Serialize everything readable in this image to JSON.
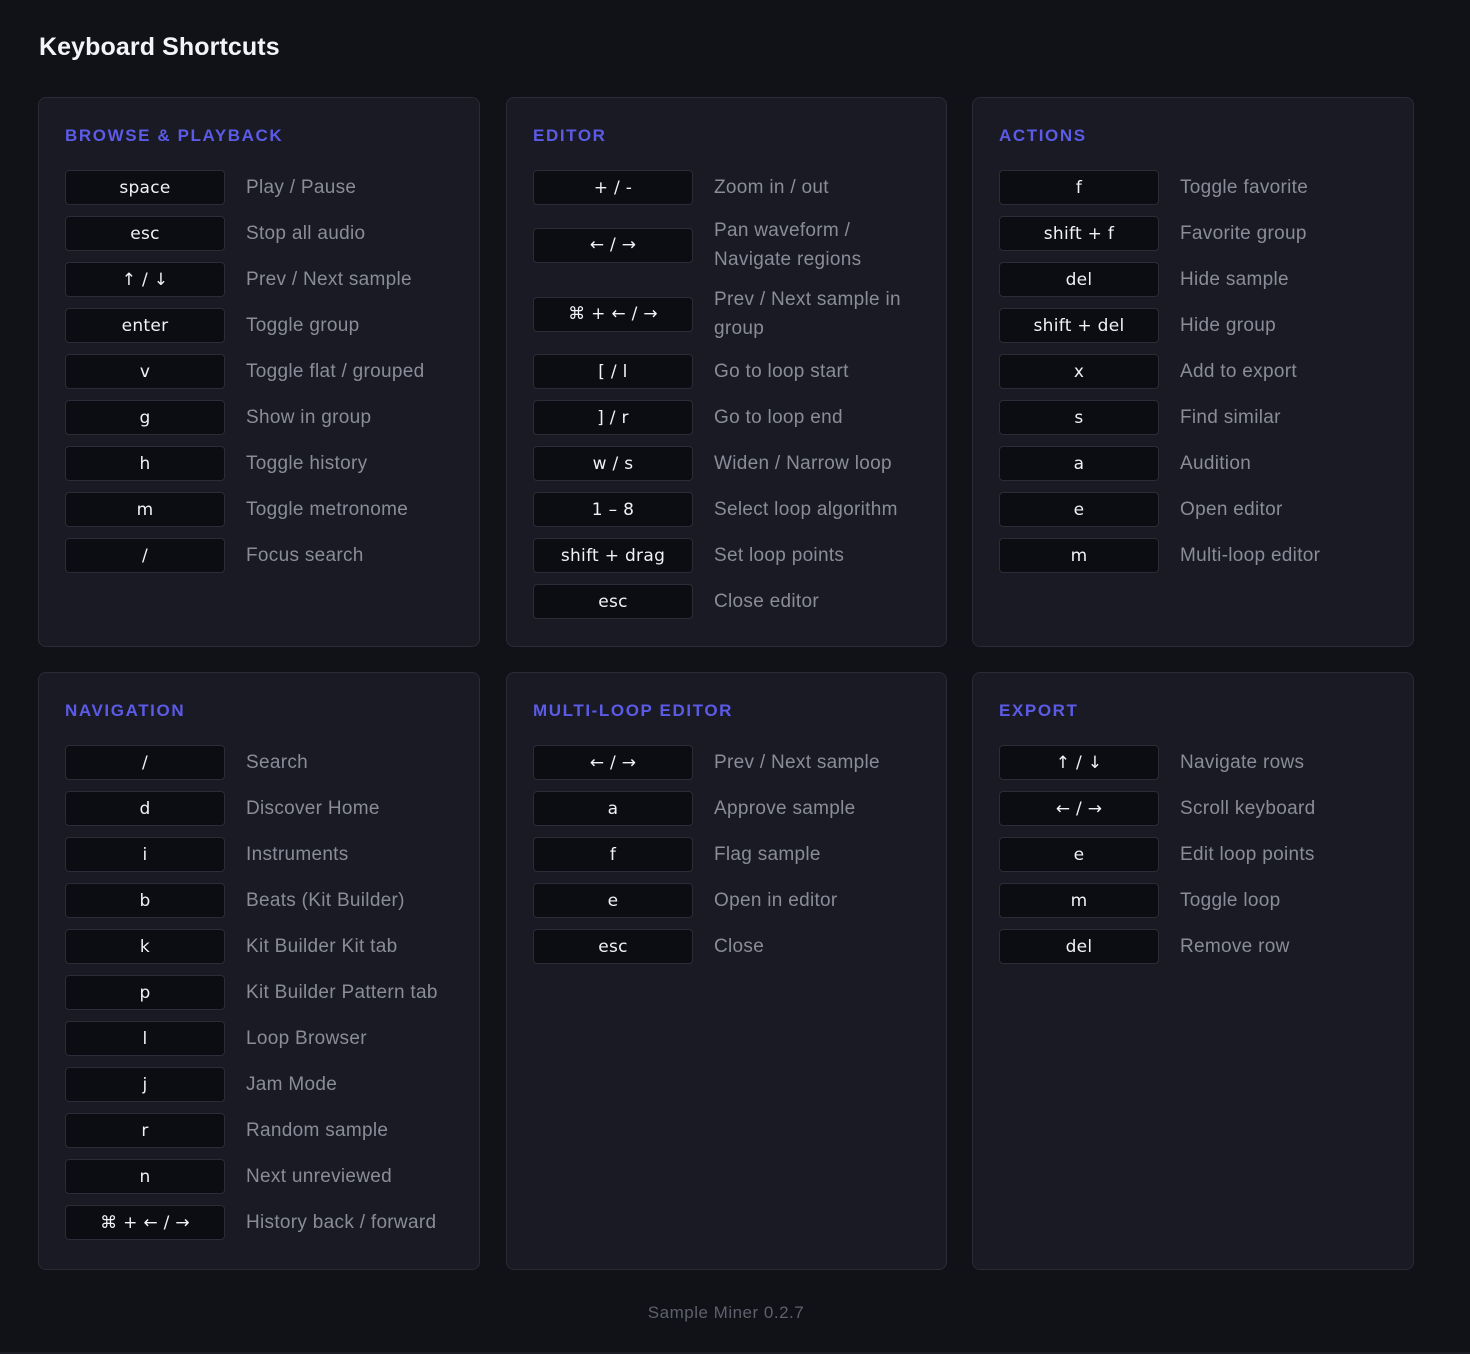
{
  "page": {
    "title": "Keyboard Shortcuts",
    "footer": "Sample Miner 0.2.7"
  },
  "colors": {
    "background": "#111218",
    "panel": "#191a23",
    "heading_accent": "#5b5be8",
    "key_background": "#0c0d12",
    "description_text": "#8a8c99"
  },
  "panels": [
    {
      "heading": "BROWSE & PLAYBACK",
      "shortcuts": [
        {
          "key": "space",
          "desc": "Play / Pause"
        },
        {
          "key": "esc",
          "desc": "Stop all audio"
        },
        {
          "key": "↑ / ↓",
          "desc": "Prev / Next sample"
        },
        {
          "key": "enter",
          "desc": "Toggle group"
        },
        {
          "key": "v",
          "desc": "Toggle flat / grouped"
        },
        {
          "key": "g",
          "desc": "Show in group"
        },
        {
          "key": "h",
          "desc": "Toggle history"
        },
        {
          "key": "m",
          "desc": "Toggle metronome"
        },
        {
          "key": "/",
          "desc": "Focus search"
        }
      ]
    },
    {
      "heading": "EDITOR",
      "shortcuts": [
        {
          "key": "+ / -",
          "desc": "Zoom in / out"
        },
        {
          "key": "← / →",
          "desc": "Pan waveform / Navigate regions"
        },
        {
          "key": "⌘ + ← / →",
          "desc": "Prev / Next sample in group"
        },
        {
          "key": "[ / l",
          "desc": "Go to loop start"
        },
        {
          "key": "] / r",
          "desc": "Go to loop end"
        },
        {
          "key": "w / s",
          "desc": "Widen / Narrow loop"
        },
        {
          "key": "1 – 8",
          "desc": "Select loop algorithm"
        },
        {
          "key": "shift + drag",
          "desc": "Set loop points"
        },
        {
          "key": "esc",
          "desc": "Close editor"
        }
      ]
    },
    {
      "heading": "ACTIONS",
      "shortcuts": [
        {
          "key": "f",
          "desc": "Toggle favorite"
        },
        {
          "key": "shift + f",
          "desc": "Favorite group"
        },
        {
          "key": "del",
          "desc": "Hide sample"
        },
        {
          "key": "shift + del",
          "desc": "Hide group"
        },
        {
          "key": "x",
          "desc": "Add to export"
        },
        {
          "key": "s",
          "desc": "Find similar"
        },
        {
          "key": "a",
          "desc": "Audition"
        },
        {
          "key": "e",
          "desc": "Open editor"
        },
        {
          "key": "m",
          "desc": "Multi-loop editor"
        }
      ]
    },
    {
      "heading": "NAVIGATION",
      "shortcuts": [
        {
          "key": "/",
          "desc": "Search"
        },
        {
          "key": "d",
          "desc": "Discover Home"
        },
        {
          "key": "i",
          "desc": "Instruments"
        },
        {
          "key": "b",
          "desc": "Beats (Kit Builder)"
        },
        {
          "key": "k",
          "desc": "Kit Builder Kit tab"
        },
        {
          "key": "p",
          "desc": "Kit Builder Pattern tab"
        },
        {
          "key": "l",
          "desc": "Loop Browser"
        },
        {
          "key": "j",
          "desc": "Jam Mode"
        },
        {
          "key": "r",
          "desc": "Random sample"
        },
        {
          "key": "n",
          "desc": "Next unreviewed"
        },
        {
          "key": "⌘ + ← / →",
          "desc": "History back / forward"
        }
      ]
    },
    {
      "heading": "MULTI-LOOP EDITOR",
      "shortcuts": [
        {
          "key": "← / →",
          "desc": "Prev / Next sample"
        },
        {
          "key": "a",
          "desc": "Approve sample"
        },
        {
          "key": "f",
          "desc": "Flag sample"
        },
        {
          "key": "e",
          "desc": "Open in editor"
        },
        {
          "key": "esc",
          "desc": "Close"
        }
      ]
    },
    {
      "heading": "EXPORT",
      "shortcuts": [
        {
          "key": "↑ / ↓",
          "desc": "Navigate rows"
        },
        {
          "key": "← / →",
          "desc": "Scroll keyboard"
        },
        {
          "key": "e",
          "desc": "Edit loop points"
        },
        {
          "key": "m",
          "desc": "Toggle loop"
        },
        {
          "key": "del",
          "desc": "Remove row"
        }
      ]
    }
  ]
}
